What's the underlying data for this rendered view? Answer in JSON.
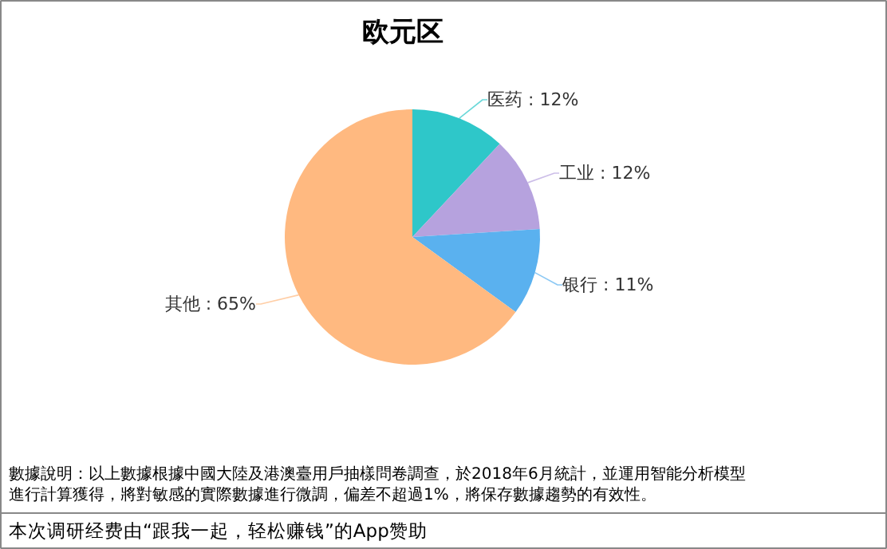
{
  "chart_data": {
    "type": "pie",
    "title": "欧元区",
    "categories": [
      "医药",
      "工业",
      "银行",
      "其他"
    ],
    "values": [
      12,
      12,
      11,
      65
    ],
    "value_labels": [
      ": 12%",
      ": 12%",
      ": 11%",
      ": 65%"
    ],
    "colors": [
      "#2ec7c9",
      "#b6a2de",
      "#5ab1ef",
      "#ffb980"
    ],
    "annotations": [
      "數據說明：以上數據根據中國大陸及港澳臺用戶抽樣問卷調查，於2018年6月統計，並運用智能分析模型",
      "進行計算獲得，將對敏感的實際數據進行微調，偏差不超過1%，將保存數據趨勢的有效性。",
      "本次调研经费由“跟我一起，轻松赚钱”的App赞助"
    ]
  }
}
